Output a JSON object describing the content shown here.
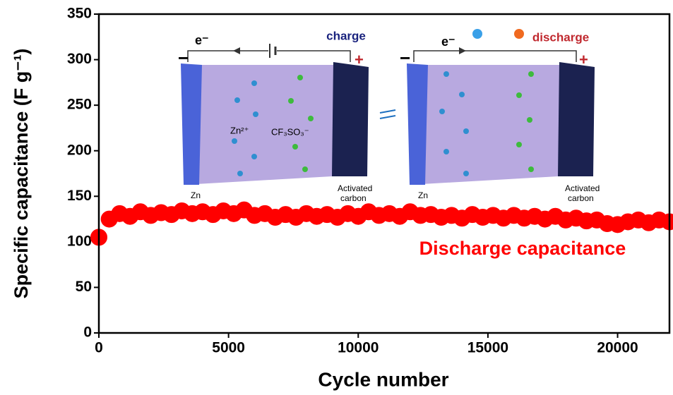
{
  "chart_data": {
    "type": "scatter",
    "xlabel": "Cycle number",
    "ylabel": "Specific capacitance (F g⁻¹)",
    "annotation": "Discharge capacitance",
    "inset": {
      "electron": "e⁻",
      "charge": "charge",
      "discharge": "discharge",
      "minus": "−",
      "plus": "+",
      "cation": "Zn²⁺",
      "anion": "CF₃SO₃⁻",
      "anode": "Zn",
      "cathode": [
        "Activated",
        "carbon"
      ]
    },
    "xlim": [
      0,
      22000
    ],
    "xticks": [
      0,
      5000,
      10000,
      15000,
      20000
    ],
    "ylim": [
      0,
      350
    ],
    "yticks": [
      0,
      50,
      100,
      150,
      200,
      250,
      300,
      350
    ],
    "color": "#ff0000",
    "x": [
      0,
      400,
      800,
      1200,
      1600,
      2000,
      2400,
      2800,
      3200,
      3600,
      4000,
      4400,
      4800,
      5200,
      5600,
      6000,
      6400,
      6800,
      7200,
      7600,
      8000,
      8400,
      8800,
      9200,
      9600,
      10000,
      10400,
      10800,
      11200,
      11600,
      12000,
      12400,
      12800,
      13200,
      13600,
      14000,
      14400,
      14800,
      15200,
      15600,
      16000,
      16400,
      16800,
      17200,
      17600,
      18000,
      18400,
      18800,
      19200,
      19600,
      20000,
      20400,
      20800,
      21200,
      21600,
      22000
    ],
    "values": [
      105,
      125,
      131,
      128,
      133,
      129,
      132,
      130,
      134,
      131,
      133,
      130,
      134,
      131,
      135,
      129,
      131,
      127,
      130,
      127,
      131,
      128,
      130,
      127,
      131,
      128,
      133,
      129,
      131,
      128,
      133,
      129,
      130,
      127,
      129,
      126,
      130,
      127,
      129,
      126,
      129,
      126,
      128,
      125,
      128,
      124,
      126,
      123,
      124,
      120,
      119,
      122,
      124,
      121,
      124,
      122
    ]
  }
}
